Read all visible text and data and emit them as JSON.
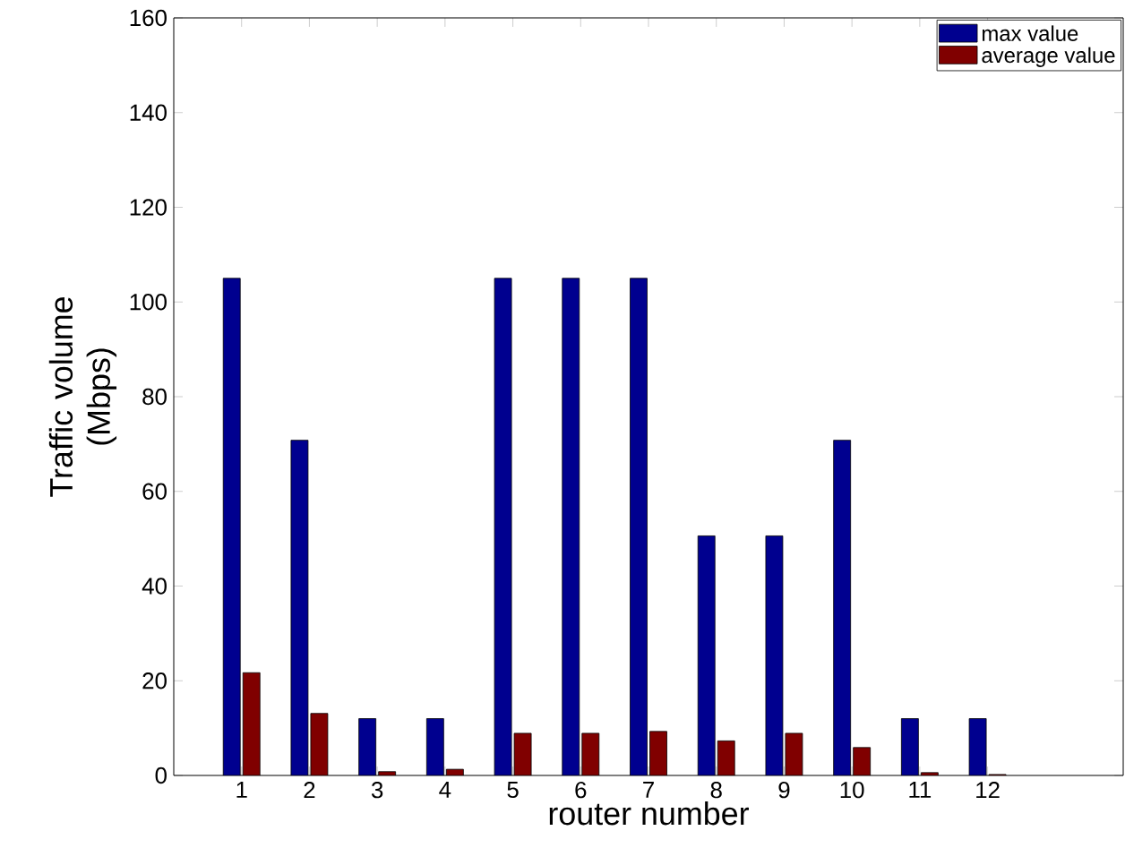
{
  "chart_data": {
    "type": "bar",
    "xlabel": "router number",
    "ylabel": "Traffic volume (Mbps)",
    "x": [
      1,
      2,
      3,
      4,
      5,
      6,
      7,
      8,
      9,
      10,
      11,
      12
    ],
    "xlim": [
      0,
      14
    ],
    "xticks": [
      1,
      2,
      3,
      4,
      5,
      6,
      7,
      8,
      9,
      10,
      11,
      12
    ],
    "ylim": [
      0,
      160
    ],
    "yticks": [
      0,
      20,
      40,
      60,
      80,
      100,
      120,
      140,
      160
    ],
    "series": [
      {
        "name": "max value",
        "color": "#00008f",
        "values": [
          105,
          70.8,
          12,
          12,
          105,
          105,
          105,
          50.6,
          50.6,
          70.8,
          12,
          12
        ]
      },
      {
        "name": "average value",
        "color": "#800000",
        "values": [
          21.7,
          13.1,
          0.8,
          1.3,
          8.9,
          8.9,
          9.3,
          7.3,
          8.9,
          5.9,
          0.6,
          0.2
        ]
      }
    ],
    "grid": false,
    "legend": "top right"
  }
}
